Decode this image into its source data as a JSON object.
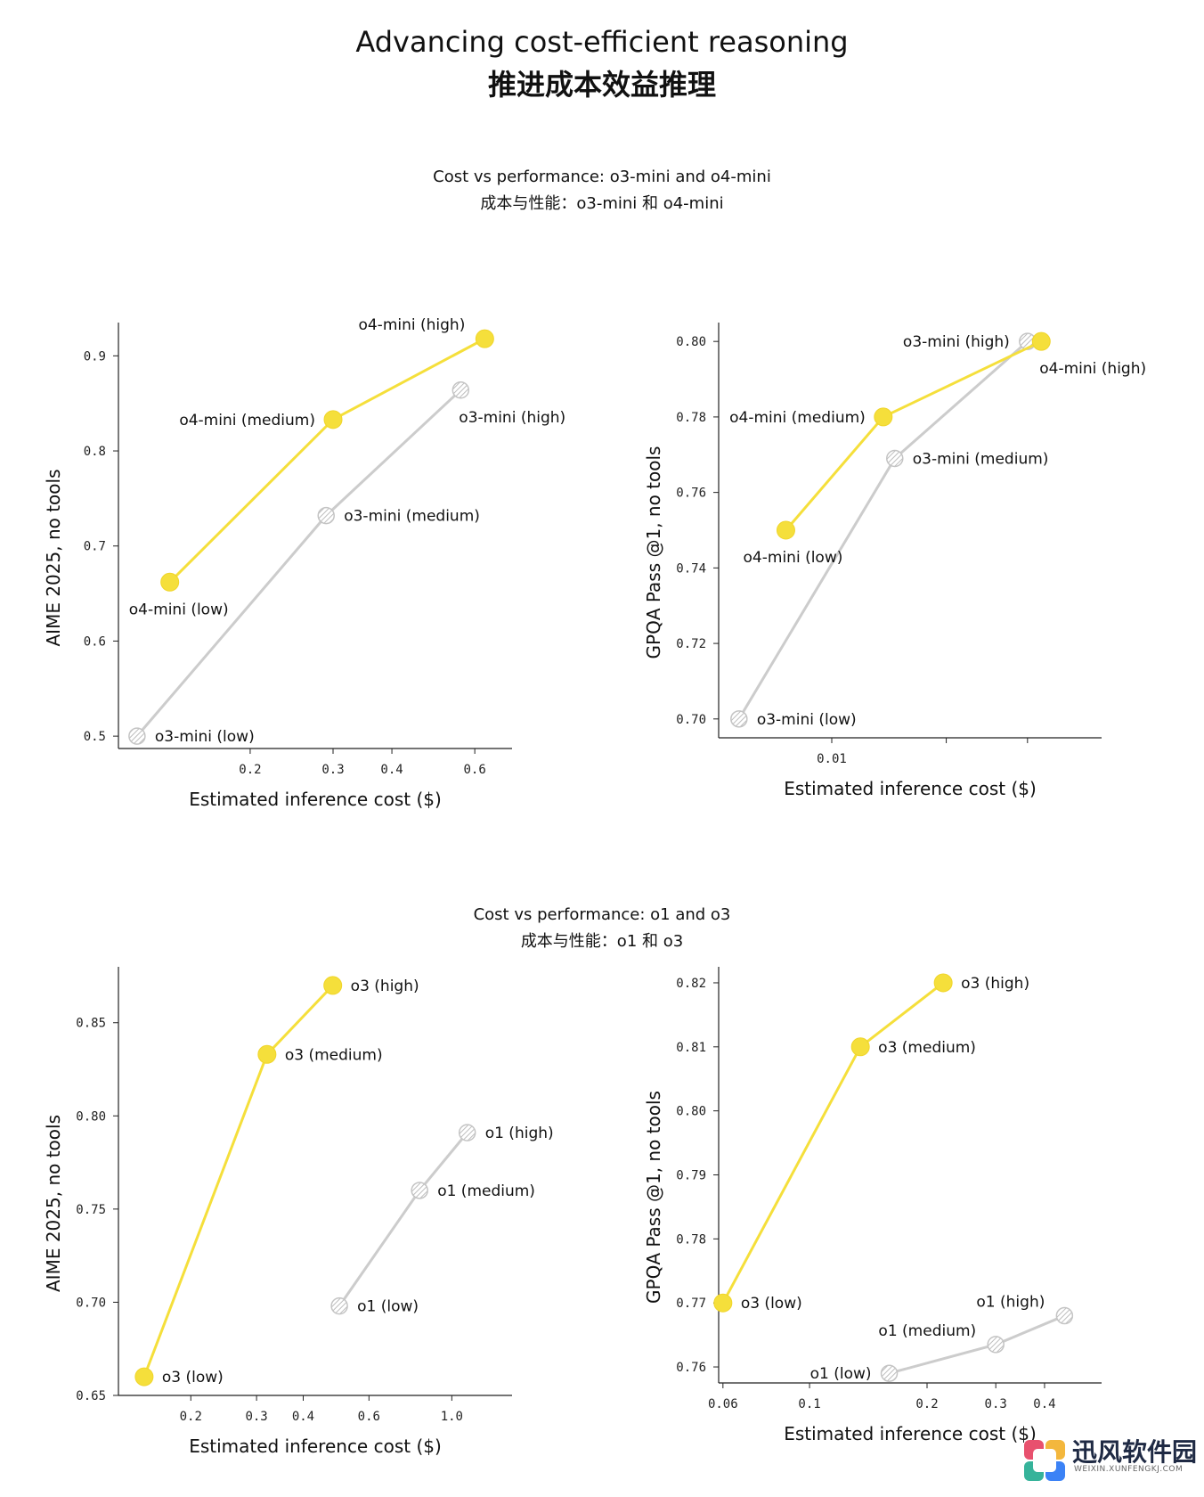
{
  "page": {
    "title_en": "Advancing cost-efficient reasoning",
    "title_zh": "推进成本效益推理",
    "section1_en": "Cost vs performance: o3-mini and o4-mini",
    "section1_zh": "成本与性能：o3-mini 和 o4-mini",
    "section2_en": "Cost vs performance: o1 and o3",
    "section2_zh": "成本与性能：o1 和 o3"
  },
  "watermark": {
    "text": "迅风软件园",
    "sub": "WEIXIN.XUNFENGKJ.COM",
    "colors": [
      "#e8516e",
      "#f3b73d",
      "#36b39a",
      "#3b82f6"
    ]
  },
  "colors": {
    "yellow": "#f5df3b",
    "gray": "#cccccc",
    "axis": "#222222"
  },
  "chart_data": [
    {
      "type": "line",
      "xscale": "log",
      "xlabel": "Estimated inference cost ($)",
      "ylabel": "AIME 2025, no tools",
      "xlim": [
        0.105,
        0.72
      ],
      "ylim": [
        0.487,
        0.935
      ],
      "xticks": [
        {
          "v": 0.2,
          "label": "0.2"
        },
        {
          "v": 0.3,
          "label": "0.3"
        },
        {
          "v": 0.4,
          "label": "0.4"
        },
        {
          "v": 0.6,
          "label": "0.6"
        }
      ],
      "yticks": [
        {
          "v": 0.5,
          "label": "0.5"
        },
        {
          "v": 0.6,
          "label": "0.6"
        },
        {
          "v": 0.7,
          "label": "0.7"
        },
        {
          "v": 0.8,
          "label": "0.8"
        },
        {
          "v": 0.9,
          "label": "0.9"
        }
      ],
      "series": [
        {
          "name": "o3-mini",
          "style": "gray",
          "points": [
            {
              "x": 0.115,
              "y": 0.5,
              "label": "o3-mini (low)",
              "pos": "right"
            },
            {
              "x": 0.29,
              "y": 0.732,
              "label": "o3-mini (medium)",
              "pos": "right"
            },
            {
              "x": 0.56,
              "y": 0.864,
              "label": "o3-mini (high)",
              "pos": "below-right"
            }
          ]
        },
        {
          "name": "o4-mini",
          "style": "yellow",
          "points": [
            {
              "x": 0.135,
              "y": 0.662,
              "label": "o4-mini (low)",
              "pos": "below-left"
            },
            {
              "x": 0.3,
              "y": 0.833,
              "label": "o4-mini (medium)",
              "pos": "left"
            },
            {
              "x": 0.63,
              "y": 0.918,
              "label": "o4-mini (high)",
              "pos": "above-left"
            }
          ]
        }
      ]
    },
    {
      "type": "line",
      "xscale": "log",
      "xlabel": "Estimated inference cost ($)",
      "ylabel": "GPQA Pass @1, no tools",
      "xlim": [
        0.0067,
        0.026
      ],
      "ylim": [
        0.695,
        0.805
      ],
      "xticks": [
        {
          "v": 0.01,
          "label": "0.01"
        },
        {
          "v": 0.015,
          "label": ""
        },
        {
          "v": 0.02,
          "label": ""
        }
      ],
      "yticks": [
        {
          "v": 0.7,
          "label": "0.70"
        },
        {
          "v": 0.72,
          "label": "0.72"
        },
        {
          "v": 0.74,
          "label": "0.74"
        },
        {
          "v": 0.76,
          "label": "0.76"
        },
        {
          "v": 0.78,
          "label": "0.78"
        },
        {
          "v": 0.8,
          "label": "0.80"
        }
      ],
      "series": [
        {
          "name": "o3-mini",
          "style": "gray",
          "points": [
            {
              "x": 0.0072,
              "y": 0.7,
              "label": "o3-mini (low)",
              "pos": "right"
            },
            {
              "x": 0.0125,
              "y": 0.769,
              "label": "o3-mini (medium)",
              "pos": "right"
            },
            {
              "x": 0.02,
              "y": 0.8,
              "label": "o3-mini (high)",
              "pos": "left"
            }
          ]
        },
        {
          "name": "o4-mini",
          "style": "yellow",
          "points": [
            {
              "x": 0.0085,
              "y": 0.75,
              "label": "o4-mini (low)",
              "pos": "below"
            },
            {
              "x": 0.012,
              "y": 0.78,
              "label": "o4-mini (medium)",
              "pos": "left"
            },
            {
              "x": 0.021,
              "y": 0.8,
              "label": "o4-mini (high)",
              "pos": "below-right"
            }
          ]
        }
      ]
    },
    {
      "type": "line",
      "xscale": "log",
      "xlabel": "Estimated inference cost ($)",
      "ylabel": "AIME 2025, no tools",
      "xlim": [
        0.128,
        1.45
      ],
      "ylim": [
        0.65,
        0.88
      ],
      "xticks": [
        {
          "v": 0.2,
          "label": "0.2"
        },
        {
          "v": 0.3,
          "label": "0.3"
        },
        {
          "v": 0.4,
          "label": "0.4"
        },
        {
          "v": 0.6,
          "label": "0.6"
        },
        {
          "v": 1.0,
          "label": "1.0"
        }
      ],
      "yticks": [
        {
          "v": 0.65,
          "label": "0.65"
        },
        {
          "v": 0.7,
          "label": "0.70"
        },
        {
          "v": 0.75,
          "label": "0.75"
        },
        {
          "v": 0.8,
          "label": "0.80"
        },
        {
          "v": 0.85,
          "label": "0.85"
        }
      ],
      "series": [
        {
          "name": "o1",
          "style": "gray",
          "points": [
            {
              "x": 0.5,
              "y": 0.698,
              "label": "o1 (low)",
              "pos": "right"
            },
            {
              "x": 0.82,
              "y": 0.76,
              "label": "o1 (medium)",
              "pos": "right"
            },
            {
              "x": 1.1,
              "y": 0.791,
              "label": "o1 (high)",
              "pos": "right"
            }
          ]
        },
        {
          "name": "o3",
          "style": "yellow",
          "points": [
            {
              "x": 0.15,
              "y": 0.66,
              "label": "o3 (low)",
              "pos": "right"
            },
            {
              "x": 0.32,
              "y": 0.833,
              "label": "o3 (medium)",
              "pos": "right"
            },
            {
              "x": 0.48,
              "y": 0.87,
              "label": "o3 (high)",
              "pos": "right"
            }
          ]
        }
      ]
    },
    {
      "type": "line",
      "xscale": "log",
      "xlabel": "Estimated inference cost ($)",
      "ylabel": "GPQA Pass @1, no tools",
      "xlim": [
        0.0585,
        0.56
      ],
      "ylim": [
        0.7575,
        0.8225
      ],
      "xticks": [
        {
          "v": 0.06,
          "label": "0.06"
        },
        {
          "v": 0.1,
          "label": "0.1"
        },
        {
          "v": 0.2,
          "label": "0.2"
        },
        {
          "v": 0.3,
          "label": "0.3"
        },
        {
          "v": 0.4,
          "label": "0.4"
        }
      ],
      "yticks": [
        {
          "v": 0.76,
          "label": "0.76"
        },
        {
          "v": 0.77,
          "label": "0.77"
        },
        {
          "v": 0.78,
          "label": "0.78"
        },
        {
          "v": 0.79,
          "label": "0.79"
        },
        {
          "v": 0.8,
          "label": "0.80"
        },
        {
          "v": 0.81,
          "label": "0.81"
        },
        {
          "v": 0.82,
          "label": "0.82"
        }
      ],
      "series": [
        {
          "name": "o1",
          "style": "gray",
          "points": [
            {
              "x": 0.16,
              "y": 0.759,
              "label": "o1 (low)",
              "pos": "left"
            },
            {
              "x": 0.3,
              "y": 0.7635,
              "label": "o1 (medium)",
              "pos": "above-left"
            },
            {
              "x": 0.45,
              "y": 0.768,
              "label": "o1 (high)",
              "pos": "above-left"
            }
          ]
        },
        {
          "name": "o3",
          "style": "yellow",
          "points": [
            {
              "x": 0.06,
              "y": 0.77,
              "label": "o3 (low)",
              "pos": "right"
            },
            {
              "x": 0.135,
              "y": 0.81,
              "label": "o3 (medium)",
              "pos": "right"
            },
            {
              "x": 0.22,
              "y": 0.82,
              "label": "o3 (high)",
              "pos": "right"
            }
          ]
        }
      ]
    }
  ]
}
